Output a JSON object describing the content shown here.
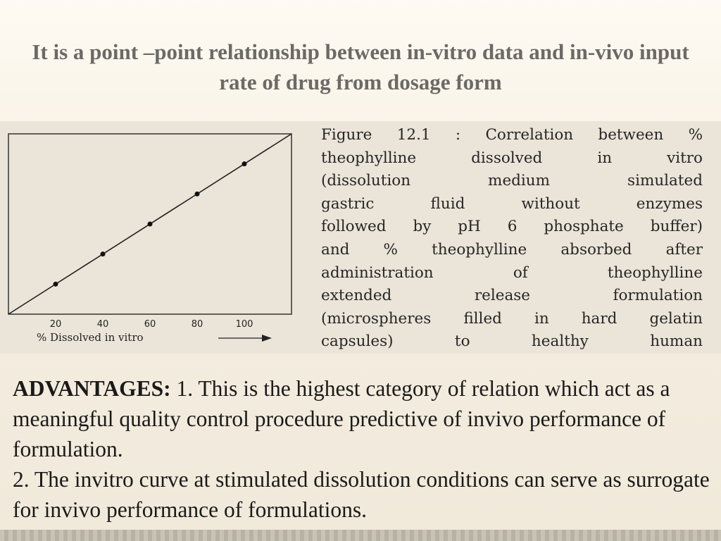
{
  "slide": {
    "title": "It is a point –point relationship between  in-vitro data and in-vivo input rate of drug from dosage form"
  },
  "figure": {
    "caption_lines": [
      "Figure 12.1 : Correlation between %",
      "theophylline dissolved in vitro",
      "(dissolution medium simulated",
      "gastric fluid without enzymes",
      "followed by pH 6 phosphate buffer)",
      "and % theophylline absorbed after",
      "administration of theophylline",
      "extended release formulation",
      "(microspheres filled in hard gelatin",
      "capsules) to healthy human"
    ]
  },
  "chart_data": {
    "type": "scatter",
    "xlabel": "% Dissolved in vitro",
    "ylabel": "",
    "x_ticks": [
      "20",
      "40",
      "60",
      "80",
      "100"
    ],
    "xlim": [
      0,
      120
    ],
    "ylim": [
      0,
      120
    ],
    "points": [
      {
        "x": 20,
        "y": 20
      },
      {
        "x": 40,
        "y": 40
      },
      {
        "x": 60,
        "y": 60
      },
      {
        "x": 80,
        "y": 80
      },
      {
        "x": 100,
        "y": 100
      }
    ],
    "line": [
      [
        0,
        0
      ],
      [
        120,
        120
      ]
    ]
  },
  "advantages": {
    "heading": "ADVANTAGES:",
    "item1": " 1. This is the highest category of relation which act as a meaningful quality control procedure predictive of invivo performance of formulation.",
    "item2": "2. The invitro curve at stimulated dissolution conditions can serve as surrogate for invivo performance of formulations."
  }
}
